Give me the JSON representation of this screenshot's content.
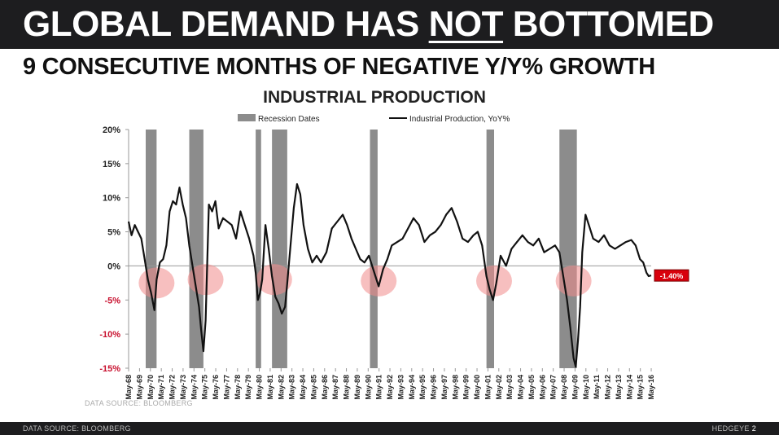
{
  "header": {
    "headline_before": "GLOBAL DEMAND HAS ",
    "headline_emphasis": "NOT",
    "headline_after": " BOTTOMED",
    "subhead": "9 CONSECUTIVE MONTHS OF NEGATIVE Y/Y% GROWTH"
  },
  "chart_data": {
    "type": "line",
    "title": "INDUSTRIAL PRODUCTION",
    "legend": [
      {
        "label": "Recession Dates",
        "kind": "bar",
        "color": "#8c8c8c"
      },
      {
        "label": "Industrial Production, YoY%",
        "kind": "line",
        "color": "#111111"
      }
    ],
    "ylim": [
      -15,
      20
    ],
    "yticks": [
      {
        "value": 20,
        "label": "20%"
      },
      {
        "value": 15,
        "label": "15%"
      },
      {
        "value": 10,
        "label": "10%"
      },
      {
        "value": 5,
        "label": "5%"
      },
      {
        "value": 0,
        "label": "0%"
      },
      {
        "value": -5,
        "label": "-5%"
      },
      {
        "value": -10,
        "label": "-10%"
      },
      {
        "value": -15,
        "label": "-15%"
      }
    ],
    "xlim": [
      1968.33,
      2016.33
    ],
    "xticks": [
      "May-68",
      "May-69",
      "May-70",
      "May-71",
      "May-72",
      "May-73",
      "May-74",
      "May-75",
      "May-76",
      "May-77",
      "May-78",
      "May-79",
      "May-80",
      "May-81",
      "May-82",
      "May-83",
      "May-84",
      "May-85",
      "May-86",
      "May-87",
      "May-88",
      "May-89",
      "May-90",
      "May-91",
      "May-92",
      "May-93",
      "May-94",
      "May-95",
      "May-96",
      "May-97",
      "May-98",
      "May-99",
      "May-00",
      "May-01",
      "May-02",
      "May-03",
      "May-04",
      "May-05",
      "May-06",
      "May-07",
      "May-08",
      "May-09",
      "May-10",
      "May-11",
      "May-12",
      "May-13",
      "May-14",
      "May-15",
      "May-16"
    ],
    "recessions": [
      [
        1969.9,
        1970.9
      ],
      [
        1973.9,
        1975.2
      ],
      [
        1980.0,
        1980.5
      ],
      [
        1981.5,
        1982.9
      ],
      [
        1990.5,
        1991.2
      ],
      [
        2001.2,
        2001.9
      ],
      [
        2007.9,
        2009.5
      ]
    ],
    "highlight_circles": [
      {
        "x": 1970.9,
        "y": -2.5
      },
      {
        "x": 1975.4,
        "y": -2.0
      },
      {
        "x": 1981.7,
        "y": -2.0
      },
      {
        "x": 1991.3,
        "y": -2.2
      },
      {
        "x": 2001.9,
        "y": -2.2
      },
      {
        "x": 2009.2,
        "y": -2.2
      }
    ],
    "series": [
      {
        "name": "Industrial Production, YoY%",
        "x": [
          1968.33,
          1968.6,
          1968.9,
          1969.2,
          1969.5,
          1969.8,
          1970.1,
          1970.4,
          1970.7,
          1970.9,
          1971.2,
          1971.5,
          1971.8,
          1972.1,
          1972.4,
          1972.7,
          1973.0,
          1973.3,
          1973.6,
          1973.9,
          1974.2,
          1974.5,
          1974.8,
          1975.0,
          1975.2,
          1975.4,
          1975.7,
          1976.0,
          1976.3,
          1976.6,
          1977.0,
          1977.4,
          1977.8,
          1978.2,
          1978.6,
          1979.0,
          1979.4,
          1979.8,
          1980.0,
          1980.2,
          1980.4,
          1980.6,
          1980.9,
          1981.2,
          1981.5,
          1981.8,
          1982.1,
          1982.4,
          1982.7,
          1982.9,
          1983.2,
          1983.5,
          1983.8,
          1984.1,
          1984.4,
          1984.8,
          1985.2,
          1985.6,
          1986.0,
          1986.5,
          1987.0,
          1987.5,
          1988.0,
          1988.4,
          1988.8,
          1989.2,
          1989.6,
          1990.0,
          1990.4,
          1990.7,
          1991.0,
          1991.3,
          1991.7,
          1992.1,
          1992.5,
          1993.0,
          1993.5,
          1994.0,
          1994.5,
          1995.0,
          1995.5,
          1996.0,
          1996.5,
          1997.0,
          1997.5,
          1998.0,
          1998.5,
          1999.0,
          1999.5,
          2000.0,
          2000.4,
          2000.8,
          2001.2,
          2001.5,
          2001.8,
          2002.1,
          2002.5,
          2003.0,
          2003.5,
          2004.0,
          2004.5,
          2005.0,
          2005.5,
          2006.0,
          2006.5,
          2007.0,
          2007.5,
          2007.9,
          2008.3,
          2008.6,
          2008.9,
          2009.2,
          2009.4,
          2009.6,
          2009.8,
          2010.0,
          2010.3,
          2010.6,
          2011.0,
          2011.5,
          2012.0,
          2012.5,
          2013.0,
          2013.5,
          2014.0,
          2014.5,
          2014.9,
          2015.3,
          2015.6,
          2015.9,
          2016.1,
          2016.33
        ],
        "values": [
          6.5,
          4.5,
          6.0,
          5.0,
          4.0,
          1.0,
          -2.0,
          -4.0,
          -6.5,
          -2.0,
          0.5,
          1.0,
          3.0,
          8.0,
          9.5,
          9.0,
          11.5,
          9.0,
          7.0,
          3.0,
          0.0,
          -3.0,
          -6.0,
          -9.5,
          -12.5,
          -8.0,
          9.0,
          8.0,
          9.5,
          5.5,
          7.0,
          6.5,
          6.0,
          4.0,
          8.0,
          6.0,
          4.0,
          1.5,
          -1.0,
          -5.0,
          -4.0,
          -2.0,
          6.0,
          2.5,
          -1.5,
          -4.5,
          -5.5,
          -7.0,
          -6.0,
          -2.5,
          3.0,
          8.5,
          12.0,
          10.5,
          6.0,
          2.5,
          0.5,
          1.5,
          0.5,
          2.0,
          5.5,
          6.5,
          7.5,
          6.0,
          4.0,
          2.5,
          1.0,
          0.5,
          1.5,
          0.0,
          -1.5,
          -3.0,
          -0.5,
          1.0,
          3.0,
          3.5,
          4.0,
          5.5,
          7.0,
          6.0,
          3.5,
          4.5,
          5.0,
          6.0,
          7.5,
          8.5,
          6.5,
          4.0,
          3.5,
          4.5,
          5.0,
          3.0,
          -1.5,
          -3.5,
          -5.0,
          -2.5,
          1.5,
          0.0,
          2.5,
          3.5,
          4.5,
          3.5,
          3.0,
          4.0,
          2.0,
          2.5,
          3.0,
          2.0,
          -2.0,
          -5.0,
          -9.0,
          -13.5,
          -14.8,
          -11.0,
          -6.0,
          2.0,
          7.5,
          6.0,
          4.0,
          3.5,
          4.5,
          3.0,
          2.5,
          3.0,
          3.5,
          3.8,
          3.0,
          1.0,
          0.5,
          -1.0,
          -1.5,
          -1.4
        ]
      }
    ],
    "last_value_label": "-1.40%",
    "source_note": "DATA SOURCE: BLOOMBERG"
  },
  "footer": {
    "source": "DATA SOURCE: BLOOMBERG",
    "brand": "HEDGEYE",
    "page": "2"
  }
}
